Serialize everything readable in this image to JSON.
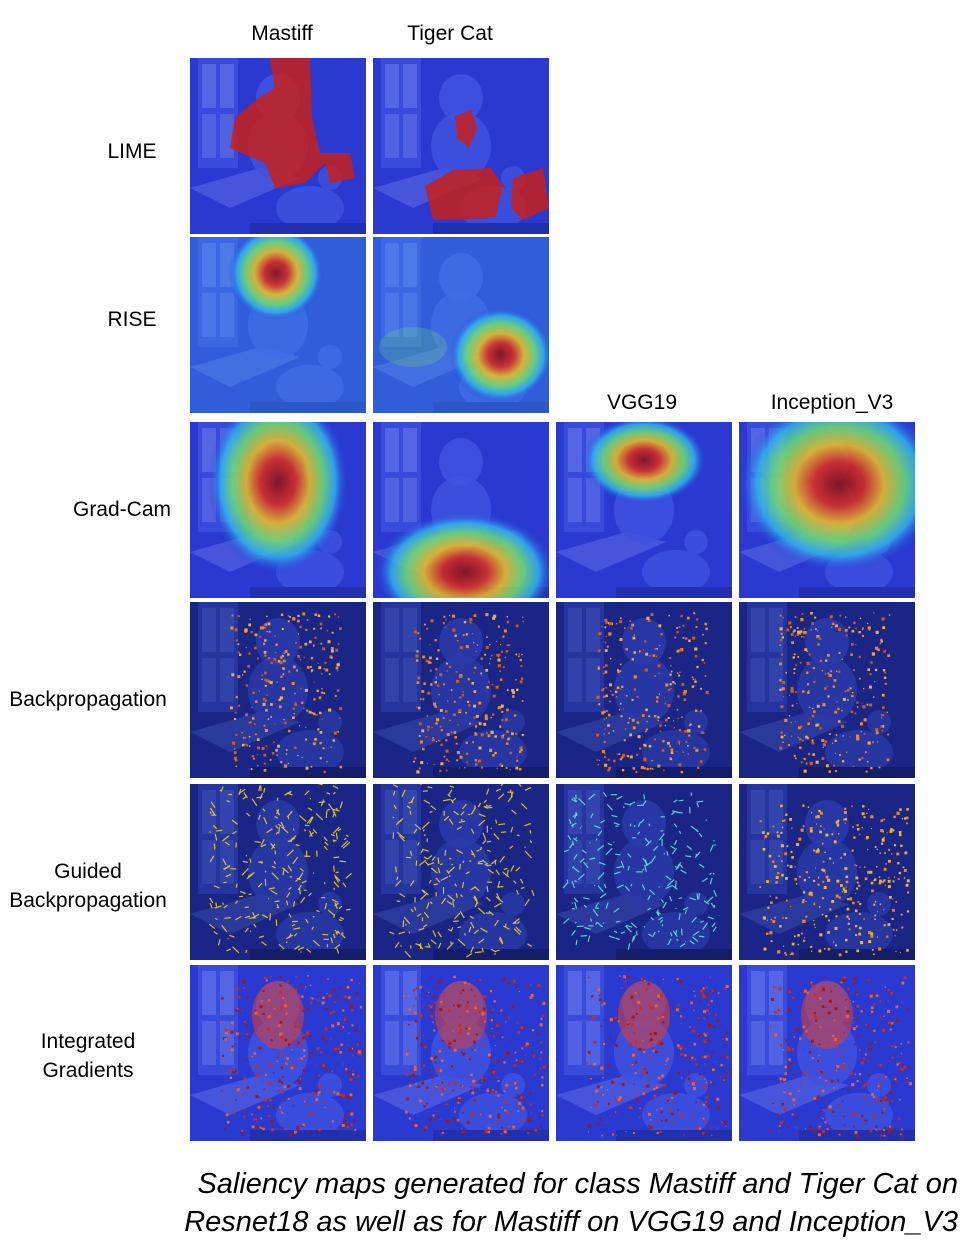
{
  "columns": [
    "Mastiff",
    "Tiger Cat",
    "VGG19",
    "Inception_V3"
  ],
  "rows": [
    {
      "label_lines": [
        "LIME"
      ]
    },
    {
      "label_lines": [
        "RISE"
      ]
    },
    {
      "label_lines": [
        "Grad-Cam"
      ]
    },
    {
      "label_lines": [
        "Backpropagation"
      ]
    },
    {
      "label_lines": [
        "Guided",
        "Backpropagation"
      ]
    },
    {
      "label_lines": [
        "Integrated",
        "Gradients"
      ]
    }
  ],
  "caption": {
    "line1": "Saliency maps generated for class Mastiff and Tiger Cat on",
    "line2": "Resnet18 as well as for Mastiff on VGG19 and Inception_V3"
  },
  "colors": {
    "background_blue": "#2a34c8",
    "dark_blue": "#1a237a",
    "hot_red": "#c8201a",
    "yellow": "#e8d020",
    "orange": "#f08a20",
    "cyan": "#60e0e0"
  }
}
